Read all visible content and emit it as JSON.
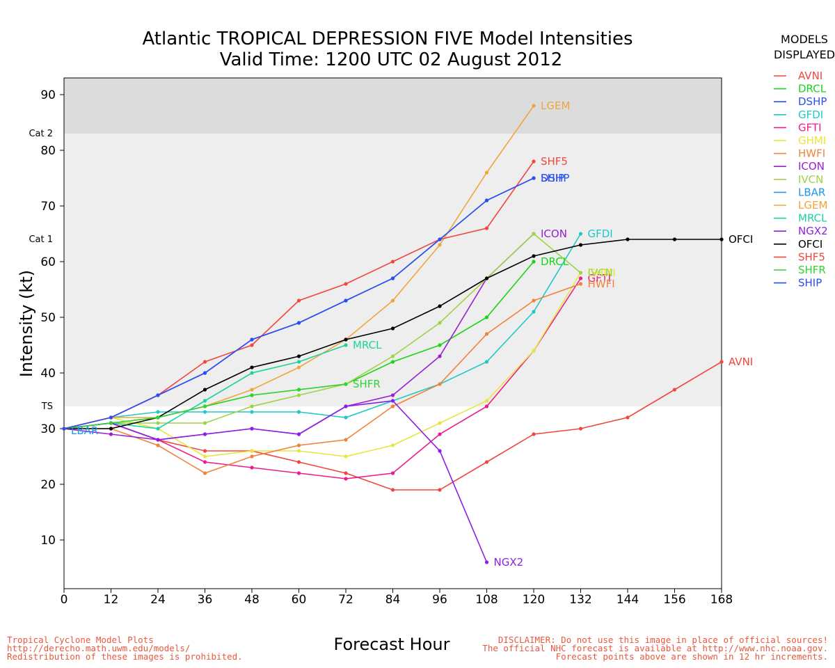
{
  "chart_data": {
    "type": "line",
    "title": "Atlantic TROPICAL DEPRESSION FIVE Model Intensities",
    "subtitle": "Valid Time: 1200 UTC 02 August 2012",
    "xlabel": "Forecast Hour",
    "ylabel": "Intensity (kt)",
    "xlim": [
      0,
      168
    ],
    "ylim": [
      0,
      93
    ],
    "xticks": [
      0,
      12,
      24,
      36,
      48,
      60,
      72,
      84,
      96,
      108,
      120,
      132,
      144,
      156,
      168
    ],
    "yticks": [
      10,
      20,
      30,
      40,
      50,
      60,
      70,
      80,
      90
    ],
    "grid": false,
    "bands": [
      {
        "label": "TS",
        "from": 34,
        "to": 64,
        "color": "#eeeeee"
      },
      {
        "label": "Cat 1",
        "from": 64,
        "to": 83,
        "color": "#eeeeee"
      },
      {
        "label": "Cat 2",
        "from": 83,
        "to": 93,
        "color": "#dcdcdc"
      }
    ],
    "series": [
      {
        "name": "AVNI",
        "color": "#f0463f",
        "label": "AVNI",
        "x": [
          0,
          12,
          24,
          36,
          48,
          60,
          72,
          84,
          96,
          108,
          120,
          132,
          144,
          156,
          168
        ],
        "y": [
          30,
          31,
          28,
          26,
          26,
          24,
          22,
          19,
          19,
          24,
          29,
          30,
          32,
          37,
          42
        ]
      },
      {
        "name": "DRCL",
        "color": "#19d419",
        "label": "DRCL",
        "x": [
          0,
          12,
          24,
          36,
          48,
          60,
          72,
          84,
          96,
          108,
          120
        ],
        "y": [
          30,
          31,
          32,
          34,
          36,
          37,
          38,
          42,
          45,
          50,
          60
        ]
      },
      {
        "name": "DSHP",
        "color": "#2a4ef0",
        "label": "DSHP",
        "x": [
          0,
          12,
          24,
          36,
          48,
          60,
          72,
          84,
          96,
          108,
          120
        ],
        "y": [
          30,
          32,
          36,
          40,
          46,
          49,
          53,
          57,
          64,
          71,
          75
        ]
      },
      {
        "name": "GFDI",
        "color": "#1ec8c8",
        "label": "GFDI",
        "x": [
          0,
          12,
          24,
          36,
          48,
          60,
          72,
          84,
          96,
          108,
          120,
          132
        ],
        "y": [
          30,
          32,
          33,
          33,
          33,
          33,
          32,
          35,
          38,
          42,
          51,
          65
        ]
      },
      {
        "name": "GFTI",
        "color": "#ec1c8c",
        "label": "GFTI",
        "x": [
          0,
          12,
          24,
          36,
          48,
          60,
          72,
          84,
          96,
          108,
          120,
          132
        ],
        "y": [
          30,
          31,
          28,
          24,
          23,
          22,
          21,
          22,
          29,
          34,
          44,
          57
        ]
      },
      {
        "name": "GHMI",
        "color": "#e6e63c",
        "label": "GHMI",
        "x": [
          0,
          12,
          24,
          36,
          48,
          60,
          72,
          84,
          96,
          108,
          120,
          132
        ],
        "y": [
          30,
          32,
          30,
          25,
          26,
          26,
          25,
          27,
          31,
          35,
          44,
          58
        ]
      },
      {
        "name": "HWFI",
        "color": "#f0823c",
        "label": "HWFI",
        "x": [
          0,
          12,
          24,
          36,
          48,
          60,
          72,
          84,
          96,
          108,
          120,
          132
        ],
        "y": [
          30,
          30,
          27,
          22,
          25,
          27,
          28,
          34,
          38,
          47,
          53,
          56
        ]
      },
      {
        "name": "ICON",
        "color": "#9a1ed2",
        "label": "ICON",
        "x": [
          0,
          12,
          24,
          36,
          48,
          60,
          72,
          84,
          96,
          108,
          120
        ],
        "y": [
          30,
          29,
          28,
          29,
          30,
          29,
          34,
          36,
          43,
          57,
          65
        ]
      },
      {
        "name": "IVCN",
        "color": "#a0d246",
        "label": "IVCN",
        "x": [
          0,
          12,
          24,
          36,
          48,
          60,
          72,
          84,
          96,
          108,
          120,
          132
        ],
        "y": [
          30,
          31,
          31,
          31,
          34,
          36,
          38,
          43,
          49,
          57,
          65,
          58
        ]
      },
      {
        "name": "LBAR",
        "color": "#1e96f0",
        "label": "LBAR",
        "x": [
          0,
          12
        ],
        "y": [
          30,
          31
        ]
      },
      {
        "name": "LGEM",
        "color": "#f0a53c",
        "label": "LGEM",
        "x": [
          0,
          12,
          24,
          36,
          48,
          60,
          72,
          84,
          96,
          108,
          120
        ],
        "y": [
          30,
          32,
          32,
          34,
          37,
          41,
          46,
          53,
          63,
          76,
          88
        ]
      },
      {
        "name": "MRCL",
        "color": "#1ed2a0",
        "label": "MRCL",
        "x": [
          0,
          12,
          24,
          36,
          48,
          60,
          72
        ],
        "y": [
          30,
          31,
          30,
          35,
          40,
          42,
          45
        ]
      },
      {
        "name": "NGX2",
        "color": "#8c1ee6",
        "label": "NGX2",
        "x": [
          0,
          12,
          24,
          36,
          48,
          60,
          72,
          84,
          96,
          108
        ],
        "y": [
          30,
          31,
          28,
          29,
          30,
          29,
          34,
          35,
          26,
          6
        ]
      },
      {
        "name": "OFCI",
        "color": "#000000",
        "label": "OFCI",
        "x": [
          0,
          12,
          24,
          36,
          48,
          60,
          72,
          84,
          96,
          108,
          120,
          132,
          144,
          156,
          168
        ],
        "y": [
          30,
          30,
          32,
          37,
          41,
          43,
          46,
          48,
          52,
          57,
          61,
          63,
          64,
          64,
          64
        ]
      },
      {
        "name": "SHF5",
        "color": "#f0463f",
        "label": "SHF5",
        "x": [
          0,
          12,
          24,
          36,
          48,
          60,
          72,
          84,
          96,
          108,
          120
        ],
        "y": [
          30,
          32,
          36,
          42,
          45,
          53,
          56,
          60,
          64,
          66,
          78
        ]
      },
      {
        "name": "SHFR",
        "color": "#32d232",
        "label": "SHFR",
        "x": [
          0,
          12,
          24,
          36,
          48,
          60,
          72
        ],
        "y": [
          30,
          31,
          32,
          34,
          36,
          37,
          38
        ]
      },
      {
        "name": "SHIP",
        "color": "#2a4ef0",
        "label": "SHIP",
        "x": [
          0,
          12,
          24,
          36,
          48,
          60,
          72,
          84,
          96,
          108,
          120
        ],
        "y": [
          30,
          32,
          36,
          40,
          46,
          49,
          53,
          57,
          64,
          71,
          75
        ]
      }
    ],
    "legend": {
      "position": "right",
      "title_lines": [
        "MODELS",
        "DISPLAYED"
      ]
    }
  },
  "footer": {
    "left": [
      "Tropical Cyclone Model Plots",
      "http://derecho.math.uwm.edu/models/",
      "Redistribution of these images is prohibited."
    ],
    "right": [
      "DISCLAIMER: Do not use this image in place of official sources!",
      "The official NHC forecast is available at http://www.nhc.noaa.gov.",
      "Forecast points above are shown in 12 hr increments."
    ]
  }
}
